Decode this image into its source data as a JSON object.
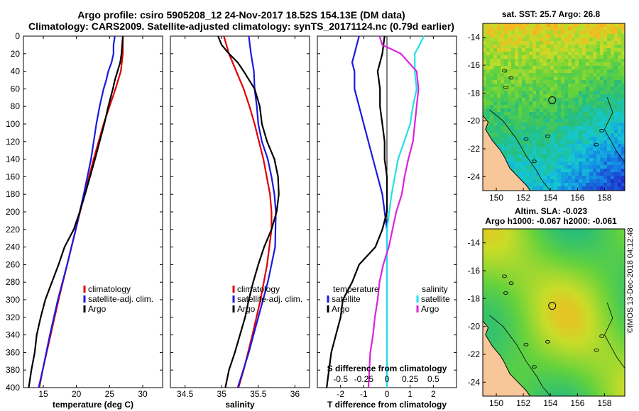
{
  "title": {
    "line1": "Argo profile: csiro 5905208_12 24-Nov-2017 18.52S 154.13E (DM data)",
    "line2": "Climatology: CARS2009. Satellite-adjusted climatology: synTS_20171124.nc (0.79d earlier)"
  },
  "credit": "©IMOS 13-Dec-2018 04:12:48",
  "colors": {
    "climatology": "#e00000",
    "satellite": "#1a1adf",
    "argo": "#000000",
    "sat_salinity": "#22e0e8",
    "argo_salinity_diff": "#dd22dd",
    "land": "#f7c79a"
  },
  "chart_data": [
    {
      "id": "temperature",
      "type": "line",
      "xlabel": "temperature (deg C)",
      "ylabel": "",
      "xlim": [
        12,
        33
      ],
      "ylim": [
        400,
        0
      ],
      "xticks": [
        15,
        20,
        25,
        30
      ],
      "xtick_labels": [
        "15",
        "20",
        "25",
        "30"
      ],
      "yticks": [
        0,
        20,
        40,
        60,
        80,
        100,
        120,
        140,
        160,
        180,
        200,
        220,
        240,
        260,
        280,
        300,
        320,
        340,
        360,
        380,
        400
      ],
      "legend": [
        "climatology",
        "satellite-adj. clim.",
        "Argo"
      ],
      "series": [
        {
          "name": "climatology",
          "color": "#e00000",
          "depth": [
            0,
            20,
            40,
            60,
            80,
            100,
            140,
            180,
            220,
            260,
            300,
            340,
            380,
            400
          ],
          "values": [
            27.0,
            27.0,
            26.7,
            25.9,
            25.0,
            24.1,
            22.6,
            21.2,
            19.9,
            18.6,
            17.3,
            16.1,
            14.9,
            14.4
          ]
        },
        {
          "name": "satellite-adj. clim.",
          "color": "#1a1adf",
          "depth": [
            0,
            10,
            20,
            30,
            40,
            50,
            60,
            80,
            100,
            140,
            180,
            220,
            260,
            300,
            340,
            380,
            400
          ],
          "values": [
            25.8,
            25.6,
            25.6,
            25.3,
            24.8,
            24.5,
            24.1,
            23.5,
            23.0,
            22.2,
            21.1,
            19.9,
            18.6,
            17.2,
            16.0,
            14.9,
            14.3
          ]
        },
        {
          "name": "Argo",
          "color": "#000000",
          "depth": [
            0,
            10,
            20,
            30,
            40,
            50,
            60,
            80,
            100,
            140,
            180,
            200,
            220,
            240,
            260,
            280,
            300,
            320,
            340,
            360,
            380,
            400
          ],
          "values": [
            27.0,
            26.9,
            26.8,
            26.6,
            26.2,
            25.8,
            25.5,
            24.8,
            24.2,
            22.8,
            21.3,
            20.5,
            19.6,
            18.2,
            17.3,
            16.3,
            15.3,
            14.6,
            14.0,
            13.7,
            13.2,
            12.8
          ]
        }
      ]
    },
    {
      "id": "salinity",
      "type": "line",
      "xlabel": "salinity",
      "ylabel": "",
      "xlim": [
        34.3,
        36.2
      ],
      "ylim": [
        400,
        0
      ],
      "xticks": [
        34.5,
        35,
        35.5,
        36
      ],
      "xtick_labels": [
        "34.5",
        "35",
        "35.5",
        "36"
      ],
      "yticks": [
        0,
        20,
        40,
        60,
        80,
        100,
        120,
        140,
        160,
        180,
        200,
        220,
        240,
        260,
        280,
        300,
        320,
        340,
        360,
        380,
        400
      ],
      "legend": [
        "climatology",
        "satellite-adj. clim.",
        "Argo"
      ],
      "series": [
        {
          "name": "climatology",
          "color": "#e00000",
          "depth": [
            0,
            20,
            40,
            60,
            80,
            100,
            140,
            180,
            200,
            220,
            260,
            300,
            340,
            380,
            400
          ],
          "values": [
            35.03,
            35.1,
            35.2,
            35.3,
            35.38,
            35.45,
            35.57,
            35.66,
            35.68,
            35.68,
            35.62,
            35.53,
            35.42,
            35.3,
            35.23
          ]
        },
        {
          "name": "satellite-adj. clim.",
          "color": "#1a1adf",
          "depth": [
            0,
            20,
            40,
            60,
            80,
            100,
            120,
            140,
            160,
            180,
            200,
            240,
            280,
            320,
            360,
            400
          ],
          "values": [
            35.37,
            35.4,
            35.44,
            35.45,
            35.48,
            35.5,
            35.55,
            35.63,
            35.68,
            35.72,
            35.74,
            35.73,
            35.63,
            35.5,
            35.37,
            35.22
          ]
        },
        {
          "name": "Argo",
          "color": "#000000",
          "depth": [
            0,
            10,
            20,
            30,
            40,
            60,
            80,
            100,
            120,
            140,
            160,
            180,
            200,
            220,
            240,
            260,
            280,
            300,
            320,
            340,
            360,
            380,
            400
          ],
          "values": [
            34.95,
            35.0,
            35.1,
            35.22,
            35.3,
            35.45,
            35.52,
            35.55,
            35.62,
            35.72,
            35.77,
            35.78,
            35.75,
            35.68,
            35.58,
            35.5,
            35.43,
            35.37,
            35.32,
            35.25,
            35.18,
            35.1,
            35.05
          ]
        }
      ]
    },
    {
      "id": "differences",
      "type": "line",
      "xlabel": "T difference from climatology",
      "x2label": "S difference from climatology",
      "ylabel": "",
      "xlim": [
        -3,
        3
      ],
      "ylim": [
        400,
        0
      ],
      "xticks": [
        -2,
        -1,
        0,
        1,
        2
      ],
      "xtick_labels": [
        "-2",
        "-1",
        "0",
        "1",
        "2"
      ],
      "x2ticks": [
        -0.5,
        -0.25,
        0,
        0.25,
        0.5
      ],
      "x2tick_labels": [
        "-0.5",
        "-0.25",
        "0",
        "0.25",
        "0.5"
      ],
      "x2lim": [
        -0.75,
        0.75
      ],
      "yticks": [
        0,
        20,
        40,
        60,
        80,
        100,
        120,
        140,
        160,
        180,
        200,
        220,
        240,
        260,
        280,
        300,
        320,
        340,
        360,
        380,
        400
      ],
      "legend_temperature": {
        "heading": "temperature",
        "items": [
          "satellite",
          "Argo"
        ]
      },
      "legend_salinity": {
        "heading": "salinity",
        "items": [
          "satellite",
          "Argo"
        ]
      },
      "series": [
        {
          "name": "temperature satellite",
          "axis": "T",
          "color": "#1a1adf",
          "depth": [
            0,
            10,
            20,
            30,
            40,
            60,
            80,
            100,
            140,
            180,
            220,
            260,
            300,
            340,
            380,
            400
          ],
          "values": [
            -1.2,
            -1.3,
            -1.4,
            -1.5,
            -1.4,
            -1.4,
            -1.2,
            -1.0,
            -0.6,
            -0.2,
            0,
            0,
            0,
            0,
            0,
            0
          ]
        },
        {
          "name": "temperature Argo",
          "axis": "T",
          "color": "#000000",
          "depth": [
            0,
            20,
            40,
            60,
            80,
            100,
            120,
            140,
            160,
            180,
            200,
            220,
            240,
            260,
            280,
            300,
            320,
            340,
            360,
            380,
            400
          ],
          "values": [
            -0.1,
            -0.2,
            -0.4,
            -0.3,
            -0.3,
            -0.2,
            -0.1,
            -0.1,
            0.0,
            0.0,
            0.0,
            -0.2,
            -0.5,
            -1.2,
            -1.5,
            -1.9,
            -2.0,
            -2.2,
            -2.4,
            -2.5,
            -2.6
          ]
        },
        {
          "name": "salinity satellite",
          "axis": "S",
          "color": "#22e0e8",
          "depth": [
            0,
            20,
            40,
            60,
            80,
            100,
            140,
            180,
            220,
            260,
            300,
            340,
            380,
            400
          ],
          "values": [
            0.4,
            0.3,
            0.3,
            0.32,
            0.28,
            0.25,
            0.12,
            0.05,
            0.0,
            0.0,
            0.0,
            0.0,
            0.0,
            0.0
          ]
        },
        {
          "name": "salinity Argo",
          "axis": "S",
          "color": "#dd22dd",
          "depth": [
            0,
            10,
            20,
            40,
            60,
            80,
            100,
            120,
            140,
            160,
            180,
            200,
            220,
            240,
            260,
            280,
            300,
            320,
            340,
            360,
            380,
            400
          ],
          "values": [
            -0.08,
            -0.05,
            0.15,
            0.32,
            0.34,
            0.32,
            0.3,
            0.28,
            0.23,
            0.19,
            0.16,
            0.1,
            0.06,
            0.02,
            -0.04,
            -0.08,
            -0.1,
            -0.13,
            -0.15,
            -0.18,
            -0.19,
            -0.2
          ]
        }
      ]
    },
    {
      "id": "sst-map",
      "type": "heatmap",
      "title": "sat. SST: 25.7  Argo: 26.8",
      "xticks": [
        150,
        152,
        154,
        156,
        158
      ],
      "xtick_labels": [
        "150",
        "152",
        "154",
        "156",
        "158"
      ],
      "yticks": [
        -14,
        -16,
        -18,
        -20,
        -22,
        -24
      ],
      "ytick_labels": [
        "-14",
        "-16",
        "-18",
        "-20",
        "-22",
        "-24"
      ],
      "xlim": [
        149,
        159.5
      ],
      "ylim": [
        -25,
        -13
      ],
      "marker": {
        "lon": 154.13,
        "lat": -18.52
      }
    },
    {
      "id": "sla-map",
      "type": "heatmap",
      "title_line1": "Altim. SLA: -0.023",
      "title_line2": "Argo h1000: -0.067  h2000: -0.061",
      "xticks": [
        150,
        152,
        154,
        156,
        158
      ],
      "xtick_labels": [
        "150",
        "152",
        "154",
        "156",
        "158"
      ],
      "yticks": [
        -14,
        -16,
        -18,
        -20,
        -22,
        -24
      ],
      "ytick_labels": [
        "-14",
        "-16",
        "-18",
        "-20",
        "-22",
        "-24"
      ],
      "xlim": [
        149,
        159.5
      ],
      "ylim": [
        -25,
        -13
      ],
      "marker": {
        "lon": 154.13,
        "lat": -18.52
      }
    }
  ]
}
